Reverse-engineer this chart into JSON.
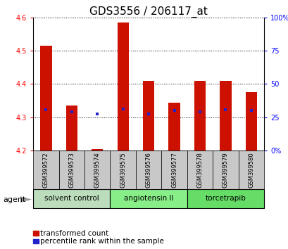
{
  "title": "GDS3556 / 206117_at",
  "samples": [
    "GSM399572",
    "GSM399573",
    "GSM399574",
    "GSM399575",
    "GSM399576",
    "GSM399577",
    "GSM399578",
    "GSM399579",
    "GSM399580"
  ],
  "bar_bottoms": [
    4.2,
    4.2,
    4.2,
    4.2,
    4.2,
    4.2,
    4.2,
    4.2,
    4.2
  ],
  "bar_tops": [
    4.515,
    4.335,
    4.205,
    4.585,
    4.41,
    4.345,
    4.41,
    4.41,
    4.375
  ],
  "percentile_values": [
    4.322,
    4.317,
    4.311,
    4.326,
    4.311,
    4.321,
    4.317,
    4.322,
    4.321
  ],
  "ylim": [
    4.2,
    4.6
  ],
  "yticks_left": [
    4.2,
    4.3,
    4.4,
    4.5,
    4.6
  ],
  "yticks_right": [
    0,
    25,
    50,
    75,
    100
  ],
  "yticks_right_labels": [
    "0",
    "25",
    "50",
    "75",
    "100%"
  ],
  "yticks_right_labels_full": [
    "0%",
    "25",
    "50",
    "75",
    "100%"
  ],
  "bar_color": "#cc1100",
  "percentile_color": "#2222cc",
  "agent_groups": [
    {
      "label": "solvent control",
      "indices": [
        0,
        1,
        2
      ],
      "color": "#bbddbb"
    },
    {
      "label": "angiotensin II",
      "indices": [
        3,
        4,
        5
      ],
      "color": "#88ee88"
    },
    {
      "label": "torcetrapib",
      "indices": [
        6,
        7,
        8
      ],
      "color": "#66dd66"
    }
  ],
  "agent_label": "agent",
  "legend_items": [
    {
      "color": "#cc1100",
      "label": "transformed count"
    },
    {
      "color": "#2222cc",
      "label": "percentile rank within the sample"
    }
  ],
  "title_fontsize": 11,
  "tick_fontsize": 7,
  "sample_fontsize": 6,
  "agent_fontsize": 7.5,
  "legend_fontsize": 7.5
}
